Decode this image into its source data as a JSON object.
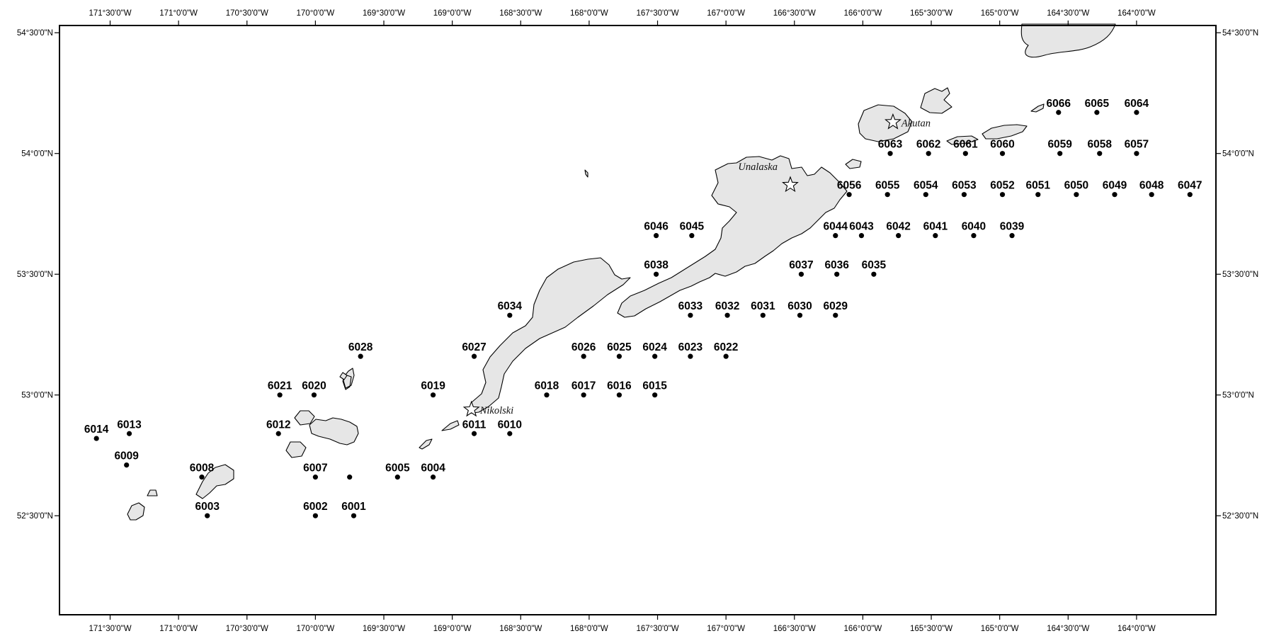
{
  "map": {
    "bounds": {
      "lon_min": -171.87,
      "lon_max": -163.42,
      "lat_min": 52.09,
      "lat_max": 54.53
    },
    "colors": {
      "land": "#e6e6e6",
      "coastline": "#000000",
      "station": "#000000",
      "frame": "#000000"
    },
    "lon_ticks": [
      {
        "lon": -171.5,
        "label": "171°30'0\"W"
      },
      {
        "lon": -171.0,
        "label": "171°0'0\"W"
      },
      {
        "lon": -170.5,
        "label": "170°30'0\"W"
      },
      {
        "lon": -170.0,
        "label": "170°0'0\"W"
      },
      {
        "lon": -169.5,
        "label": "169°30'0\"W"
      },
      {
        "lon": -169.0,
        "label": "169°0'0\"W"
      },
      {
        "lon": -168.5,
        "label": "168°30'0\"W"
      },
      {
        "lon": -168.0,
        "label": "168°0'0\"W"
      },
      {
        "lon": -167.5,
        "label": "167°30'0\"W"
      },
      {
        "lon": -167.0,
        "label": "167°0'0\"W"
      },
      {
        "lon": -166.5,
        "label": "166°30'0\"W"
      },
      {
        "lon": -166.0,
        "label": "166°0'0\"W"
      },
      {
        "lon": -165.5,
        "label": "165°30'0\"W"
      },
      {
        "lon": -165.0,
        "label": "165°0'0\"W"
      },
      {
        "lon": -164.5,
        "label": "164°30'0\"W"
      },
      {
        "lon": -164.0,
        "label": "164°0'0\"W"
      }
    ],
    "lat_ticks": [
      {
        "lat": 54.5,
        "label": "54°30'0\"N"
      },
      {
        "lat": 54.0,
        "label": "54°0'0\"N"
      },
      {
        "lat": 53.5,
        "label": "53°30'0\"N"
      },
      {
        "lat": 53.0,
        "label": "53°0'0\"N"
      },
      {
        "lat": 52.5,
        "label": "52°30'0\"N"
      }
    ],
    "places": [
      {
        "name": "Akutan",
        "lon": -165.78,
        "lat": 54.13,
        "star": true
      },
      {
        "name": "Unalaska",
        "lon": -166.53,
        "lat": 53.87,
        "star": true
      },
      {
        "name": "Nikolski",
        "lon": -168.86,
        "lat": 52.94,
        "star": true
      }
    ],
    "stations": [
      {
        "id": "6001",
        "lon": -169.72,
        "lat": 52.5
      },
      {
        "id": "6002",
        "lon": -170.0,
        "lat": 52.5
      },
      {
        "id": "6003",
        "lon": -170.79,
        "lat": 52.5
      },
      {
        "id": "6004",
        "lon": -169.14,
        "lat": 52.66
      },
      {
        "id": "6005",
        "lon": -169.4,
        "lat": 52.66
      },
      {
        "id": "",
        "lon": -169.75,
        "lat": 52.66
      },
      {
        "id": "6007",
        "lon": -170.0,
        "lat": 52.66
      },
      {
        "id": "6008",
        "lon": -170.83,
        "lat": 52.66
      },
      {
        "id": "6009",
        "lon": -171.38,
        "lat": 52.71
      },
      {
        "id": "6010",
        "lon": -168.58,
        "lat": 52.84
      },
      {
        "id": "6011",
        "lon": -168.84,
        "lat": 52.84
      },
      {
        "id": "6012",
        "lon": -170.27,
        "lat": 52.84
      },
      {
        "id": "6013",
        "lon": -171.36,
        "lat": 52.84
      },
      {
        "id": "6014",
        "lon": -171.6,
        "lat": 52.82
      },
      {
        "id": "6015",
        "lon": -167.52,
        "lat": 53.0
      },
      {
        "id": "6016",
        "lon": -167.78,
        "lat": 53.0
      },
      {
        "id": "6017",
        "lon": -168.04,
        "lat": 53.0
      },
      {
        "id": "6018",
        "lon": -168.31,
        "lat": 53.0
      },
      {
        "id": "6019",
        "lon": -169.14,
        "lat": 53.0
      },
      {
        "id": "6020",
        "lon": -170.01,
        "lat": 53.0
      },
      {
        "id": "6021",
        "lon": -170.26,
        "lat": 53.0
      },
      {
        "id": "6022",
        "lon": -167.0,
        "lat": 53.16
      },
      {
        "id": "6023",
        "lon": -167.26,
        "lat": 53.16
      },
      {
        "id": "6024",
        "lon": -167.52,
        "lat": 53.16
      },
      {
        "id": "6025",
        "lon": -167.78,
        "lat": 53.16
      },
      {
        "id": "6026",
        "lon": -168.04,
        "lat": 53.16
      },
      {
        "id": "6027",
        "lon": -168.84,
        "lat": 53.16
      },
      {
        "id": "6028",
        "lon": -169.67,
        "lat": 53.16
      },
      {
        "id": "6029",
        "lon": -166.2,
        "lat": 53.33
      },
      {
        "id": "6030",
        "lon": -166.46,
        "lat": 53.33
      },
      {
        "id": "6031",
        "lon": -166.73,
        "lat": 53.33
      },
      {
        "id": "6032",
        "lon": -166.99,
        "lat": 53.33
      },
      {
        "id": "6033",
        "lon": -167.26,
        "lat": 53.33
      },
      {
        "id": "6034",
        "lon": -168.58,
        "lat": 53.33
      },
      {
        "id": "6035",
        "lon": -165.92,
        "lat": 53.5
      },
      {
        "id": "6036",
        "lon": -166.19,
        "lat": 53.5
      },
      {
        "id": "6037",
        "lon": -166.45,
        "lat": 53.5
      },
      {
        "id": "6038",
        "lon": -167.51,
        "lat": 53.5
      },
      {
        "id": "6039",
        "lon": -164.91,
        "lat": 53.66
      },
      {
        "id": "6040",
        "lon": -165.19,
        "lat": 53.66
      },
      {
        "id": "6041",
        "lon": -165.47,
        "lat": 53.66
      },
      {
        "id": "6042",
        "lon": -165.74,
        "lat": 53.66
      },
      {
        "id": "6043",
        "lon": -166.01,
        "lat": 53.66
      },
      {
        "id": "6044",
        "lon": -166.2,
        "lat": 53.66
      },
      {
        "id": "6045",
        "lon": -167.25,
        "lat": 53.66
      },
      {
        "id": "6046",
        "lon": -167.51,
        "lat": 53.66
      },
      {
        "id": "6047",
        "lon": -163.61,
        "lat": 53.83
      },
      {
        "id": "6048",
        "lon": -163.89,
        "lat": 53.83
      },
      {
        "id": "6049",
        "lon": -164.16,
        "lat": 53.83
      },
      {
        "id": "6050",
        "lon": -164.44,
        "lat": 53.83
      },
      {
        "id": "6051",
        "lon": -164.72,
        "lat": 53.83
      },
      {
        "id": "6052",
        "lon": -164.98,
        "lat": 53.83
      },
      {
        "id": "6053",
        "lon": -165.26,
        "lat": 53.83
      },
      {
        "id": "6054",
        "lon": -165.54,
        "lat": 53.83
      },
      {
        "id": "6055",
        "lon": -165.82,
        "lat": 53.83
      },
      {
        "id": "6056",
        "lon": -166.1,
        "lat": 53.83
      },
      {
        "id": "6057",
        "lon": -164.0,
        "lat": 54.0
      },
      {
        "id": "6058",
        "lon": -164.27,
        "lat": 54.0
      },
      {
        "id": "6059",
        "lon": -164.56,
        "lat": 54.0
      },
      {
        "id": "6060",
        "lon": -164.98,
        "lat": 54.0
      },
      {
        "id": "6061",
        "lon": -165.25,
        "lat": 54.0
      },
      {
        "id": "6062",
        "lon": -165.52,
        "lat": 54.0
      },
      {
        "id": "6063",
        "lon": -165.8,
        "lat": 54.0
      },
      {
        "id": "6064",
        "lon": -164.0,
        "lat": 54.17
      },
      {
        "id": "6065",
        "lon": -164.29,
        "lat": 54.17
      },
      {
        "id": "6066",
        "lon": -164.57,
        "lat": 54.17
      }
    ]
  }
}
